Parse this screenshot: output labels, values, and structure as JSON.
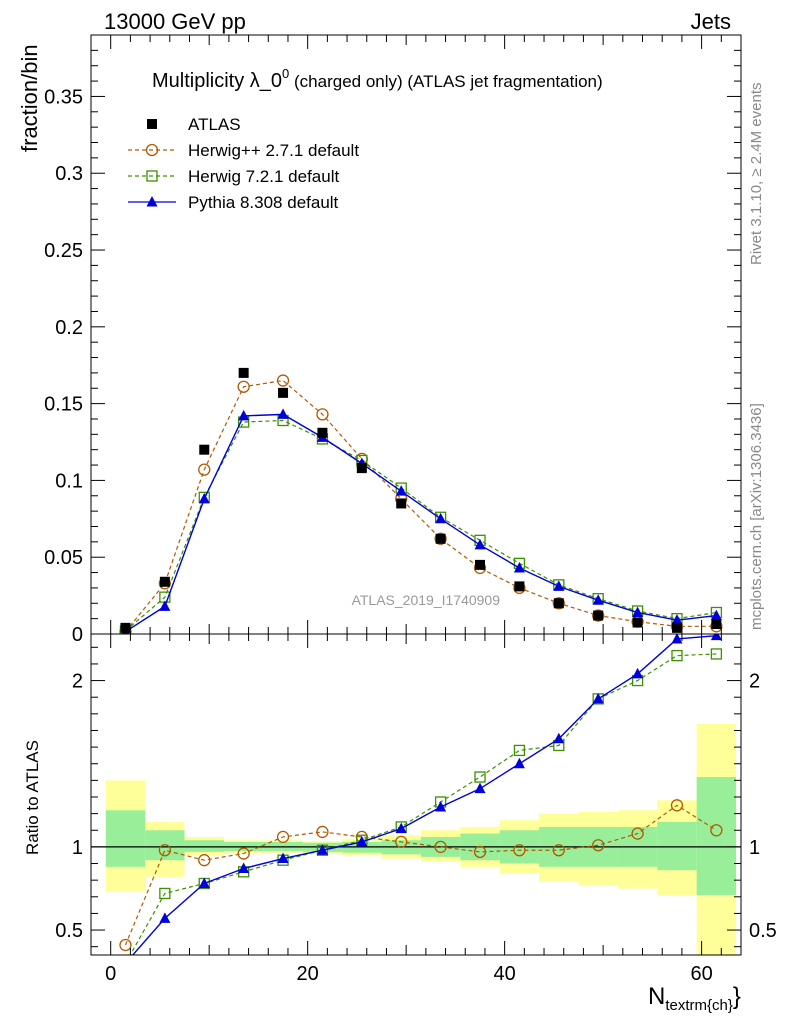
{
  "header": {
    "left": "13000 GeV pp",
    "right": "Jets"
  },
  "side_labels": {
    "rivet": "Rivet 3.1.10, ≥ 2.4M events",
    "mcplots": "mcplots.cern.ch [arXiv:1306.3436]"
  },
  "title": {
    "main": "Multiplicity λ_0",
    "sup": "0",
    "sub": " (charged only) (ATLAS jet fragmentation)"
  },
  "watermark": "ATLAS_2019_I1740909",
  "xlabel": {
    "main": "N",
    "sub": "textrm{ch}",
    "tail": "}"
  },
  "chart_data": [
    {
      "type": "line",
      "ylabel": "fraction/bin",
      "xlim": [
        -2,
        64
      ],
      "ylim": [
        0,
        0.39
      ],
      "yticks": [
        0,
        0.05,
        0.1,
        0.15,
        0.2,
        0.25,
        0.3,
        0.35
      ],
      "ytick_labels": [
        "0",
        "0.05",
        "0.1",
        "0.15",
        "0.2",
        "0.25",
        "0.3",
        "0.35"
      ],
      "legend_position": "top-left",
      "x": [
        1.5,
        5.5,
        9.5,
        13.5,
        17.5,
        21.5,
        25.5,
        29.5,
        33.5,
        37.5,
        41.5,
        45.5,
        49.5,
        53.5,
        57.5,
        61.5
      ],
      "series": [
        {
          "name": "ATLAS",
          "style": "data",
          "color": "#000000",
          "values": [
            0.004,
            0.034,
            0.12,
            0.17,
            0.157,
            0.131,
            0.108,
            0.085,
            0.062,
            0.045,
            0.031,
            0.02,
            0.012,
            0.0075,
            0.004,
            0.0065
          ]
        },
        {
          "name": "Herwig++ 2.7.1 default",
          "style": "circle",
          "color": "#b35900",
          "values": [
            0.0015,
            0.033,
            0.107,
            0.161,
            0.165,
            0.143,
            0.114,
            0.088,
            0.062,
            0.043,
            0.03,
            0.02,
            0.012,
            0.008,
            0.005,
            0.005
          ]
        },
        {
          "name": "Herwig 7.2.1 default",
          "style": "square",
          "color": "#3c9100",
          "values": [
            0.002,
            0.024,
            0.089,
            0.138,
            0.139,
            0.127,
            0.113,
            0.095,
            0.076,
            0.061,
            0.046,
            0.032,
            0.023,
            0.015,
            0.01,
            0.014
          ]
        },
        {
          "name": "Pythia 8.308 default",
          "style": "triangle",
          "color": "#0000dd",
          "values": [
            0.0015,
            0.018,
            0.088,
            0.142,
            0.143,
            0.128,
            0.111,
            0.093,
            0.075,
            0.058,
            0.043,
            0.031,
            0.022,
            0.014,
            0.009,
            0.012
          ]
        }
      ]
    },
    {
      "type": "line",
      "ylabel": "Ratio to ATLAS",
      "xlabel": "N_textrm{ch}",
      "xlim": [
        -2,
        64
      ],
      "ylim": [
        0.35,
        2.28
      ],
      "yticks": [
        0.5,
        1,
        2
      ],
      "ytick_labels": [
        "0.5",
        "1",
        "2"
      ],
      "xticks": [
        0,
        20,
        40,
        60
      ],
      "xtick_labels": [
        "0",
        "20",
        "40",
        "60"
      ],
      "bin_edges": [
        -0.5,
        3.5,
        7.5,
        11.5,
        15.5,
        19.5,
        23.5,
        27.5,
        31.5,
        35.5,
        39.5,
        43.5,
        47.5,
        51.5,
        55.5,
        59.5,
        63.5
      ],
      "bands": {
        "inner_color": "#99ee99",
        "outer_color": "#ffff99",
        "inner": [
          [
            0.88,
            1.22
          ],
          [
            0.92,
            1.1
          ],
          [
            0.97,
            1.04
          ],
          [
            0.975,
            1.03
          ],
          [
            0.975,
            1.03
          ],
          [
            0.97,
            1.025
          ],
          [
            0.965,
            1.03
          ],
          [
            0.955,
            1.04
          ],
          [
            0.94,
            1.06
          ],
          [
            0.92,
            1.08
          ],
          [
            0.9,
            1.1
          ],
          [
            0.88,
            1.12
          ],
          [
            0.88,
            1.12
          ],
          [
            0.88,
            1.12
          ],
          [
            0.86,
            1.15
          ],
          [
            0.71,
            1.42
          ]
        ],
        "outer": [
          [
            0.73,
            1.4
          ],
          [
            0.82,
            1.15
          ],
          [
            0.95,
            1.06
          ],
          [
            0.96,
            1.04
          ],
          [
            0.965,
            1.04
          ],
          [
            0.96,
            1.035
          ],
          [
            0.95,
            1.05
          ],
          [
            0.93,
            1.07
          ],
          [
            0.91,
            1.1
          ],
          [
            0.88,
            1.12
          ],
          [
            0.84,
            1.16
          ],
          [
            0.79,
            1.2
          ],
          [
            0.77,
            1.21
          ],
          [
            0.75,
            1.22
          ],
          [
            0.71,
            1.28
          ],
          [
            0.33,
            1.74
          ]
        ]
      },
      "series": [
        {
          "name": "Herwig++ 2.7.1 default",
          "color": "#b35900",
          "values": [
            0.41,
            0.98,
            0.92,
            0.96,
            1.06,
            1.09,
            1.06,
            1.03,
            1.0,
            0.97,
            0.98,
            0.98,
            1.01,
            1.08,
            1.25,
            1.1
          ]
        },
        {
          "name": "Herwig 7.2.1 default",
          "color": "#3c9100",
          "values": [
            0.3,
            0.72,
            0.78,
            0.85,
            0.92,
            0.98,
            1.04,
            1.12,
            1.27,
            1.42,
            1.58,
            1.61,
            1.89,
            2.0,
            2.15,
            2.16
          ]
        },
        {
          "name": "Pythia 8.308 default",
          "color": "#0000dd",
          "values": [
            0.3,
            0.57,
            0.78,
            0.87,
            0.93,
            0.98,
            1.03,
            1.11,
            1.24,
            1.35,
            1.5,
            1.65,
            1.89,
            2.04,
            2.25,
            2.27
          ]
        }
      ]
    }
  ]
}
